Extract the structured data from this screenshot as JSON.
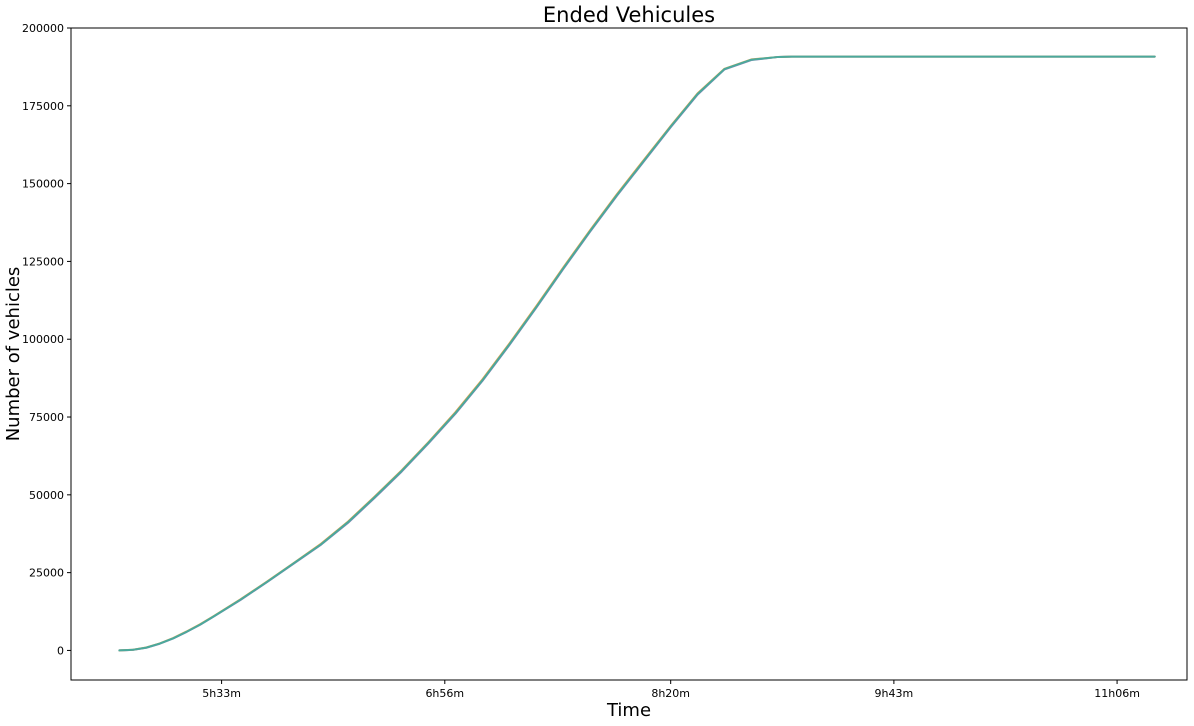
{
  "chart_data": {
    "type": "line",
    "title": "Ended Vehicules",
    "xlabel": "Time",
    "ylabel": "Number of vehicles",
    "x_tick_labels": [
      "5h33m",
      "6h56m",
      "8h20m",
      "9h43m",
      "11h06m"
    ],
    "x_tick_minutes": [
      333,
      416,
      500,
      583,
      666
    ],
    "xlim_minutes": [
      277,
      692
    ],
    "y_ticks": [
      0,
      25000,
      50000,
      75000,
      100000,
      125000,
      150000,
      175000,
      200000
    ],
    "y_tick_labels": [
      "0",
      "25000",
      "50000",
      "75000",
      "100000",
      "125000",
      "150000",
      "175000",
      "200000"
    ],
    "ylim": [
      -9500,
      200000
    ],
    "grid": false,
    "legend": "none",
    "series": [
      {
        "color": "#4aa99d",
        "x_minutes": [
          295,
          300,
          305,
          310,
          315,
          320,
          325,
          330,
          340,
          350,
          360,
          370,
          380,
          390,
          400,
          410,
          420,
          430,
          440,
          450,
          460,
          470,
          480,
          490,
          500,
          510,
          520,
          530,
          540,
          545,
          550,
          555,
          560,
          570,
          580,
          590,
          600,
          620,
          640,
          660,
          680
        ],
        "values": [
          0,
          200,
          900,
          2200,
          3900,
          6000,
          8300,
          10900,
          16300,
          22100,
          28100,
          34100,
          41200,
          49300,
          57700,
          66800,
          76300,
          86800,
          98300,
          110300,
          122700,
          134700,
          146300,
          157300,
          168300,
          178800,
          186800,
          189800,
          190700,
          190800,
          190800,
          190800,
          190800,
          190800,
          190800,
          190800,
          190800,
          190800,
          190800,
          190800,
          190800
        ]
      },
      {
        "color": "#e6a54a",
        "x_minutes": [
          295,
          300,
          305,
          310,
          315,
          320,
          325,
          330,
          340,
          350,
          360,
          370,
          380,
          390,
          400,
          410,
          420,
          430,
          440,
          450,
          460,
          470,
          480,
          490,
          500,
          510,
          520,
          530,
          540,
          545,
          550,
          555,
          560,
          570,
          580,
          590,
          600,
          620,
          640,
          660,
          680
        ],
        "values": [
          0,
          220,
          950,
          2250,
          4000,
          6100,
          8400,
          11000,
          16400,
          22200,
          28200,
          34300,
          41400,
          49500,
          57900,
          67000,
          76600,
          87100,
          98600,
          110600,
          123000,
          135000,
          146600,
          157600,
          168500,
          179000,
          186900,
          189900,
          190700,
          190800,
          190800,
          190800,
          190800,
          190800,
          190800,
          190800,
          190800,
          190800,
          190800,
          190800,
          190800
        ]
      },
      {
        "color": "#8a7fb8",
        "x_minutes": [
          295,
          300,
          305,
          310,
          315,
          320,
          325,
          330,
          340,
          350,
          360,
          370,
          380,
          390,
          400,
          410,
          420,
          430,
          440,
          450,
          460,
          470,
          480,
          490,
          500,
          510,
          520,
          530,
          540,
          545,
          550,
          555,
          560,
          570,
          580,
          590,
          600,
          620,
          640,
          660,
          680
        ],
        "values": [
          0,
          180,
          870,
          2150,
          3850,
          5950,
          8250,
          10850,
          16200,
          22000,
          28000,
          34000,
          41000,
          49100,
          57500,
          66600,
          76100,
          86600,
          98100,
          110100,
          122500,
          134500,
          146100,
          157100,
          168100,
          178600,
          186700,
          189700,
          190700,
          190800,
          190800,
          190800,
          190800,
          190800,
          190800,
          190800,
          190800,
          190800,
          190800,
          190800,
          190800
        ]
      }
    ]
  }
}
